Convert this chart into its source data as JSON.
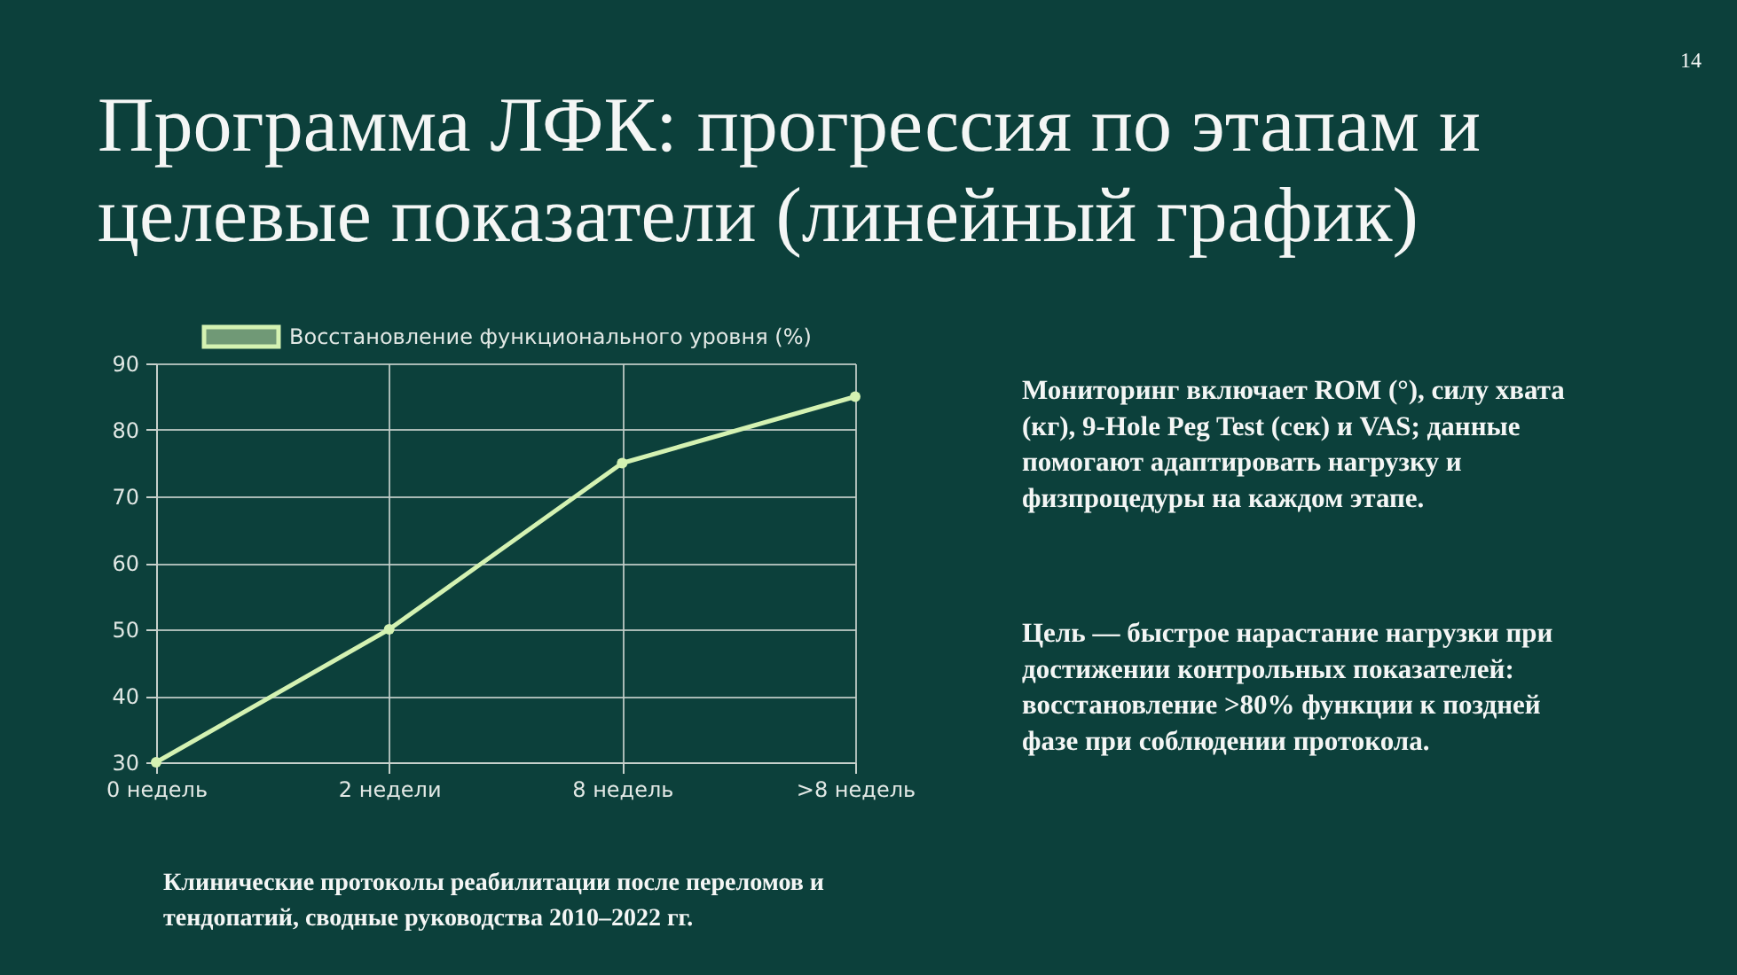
{
  "chart_data": {
    "type": "line",
    "title": "Программа ЛФК: прогрессия по этапам и целевые показатели (линейный график)",
    "categories": [
      "0 недель",
      "2 недели",
      "8 недель",
      ">8 недель"
    ],
    "series": [
      {
        "name": "Восстановление функционального уровня (%)",
        "color": "#d4f2b2",
        "values": [
          30,
          50,
          75,
          85
        ]
      }
    ],
    "ylim": [
      30,
      90
    ],
    "yticks": [
      30,
      40,
      50,
      60,
      70,
      80,
      90
    ],
    "grid": true,
    "legend": "top",
    "marker": "circle",
    "annotations": [
      "Мониторинг включает ROM (°), силу хвата (кг), 9-Hole Peg Test (сек) и VAS; данные помогают адаптировать нагрузку и физпроцедуры на каждом этапе.",
      "Цель — быстрое нарастание нагрузки при достижении контрольных показателей: восстановление >80% функции к поздней фазе при соблюдении протокола.",
      "Клинические протоколы реабилитации после переломов и тендопатий, сводные руководства 2010–2022 гг.",
      "14"
    ]
  }
}
